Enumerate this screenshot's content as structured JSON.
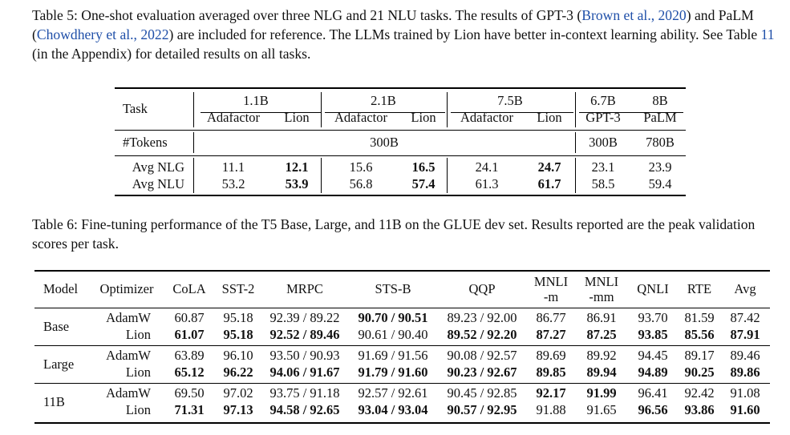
{
  "table5": {
    "caption": {
      "prefix": "Table 5: One-shot evaluation averaged over three NLG and 21 NLU tasks. The results of GPT-3 (",
      "cite1": "Brown et al., 2020",
      "mid1": ") and PaLM (",
      "cite2": "Chowdhery et al., 2022",
      "mid2": ") are included for reference. The LLMs trained by Lion have better in-context learning ability. See Table ",
      "ref": "11",
      "suffix": " (in the Appendix) for detailed results on all tasks."
    },
    "header": {
      "task": "Task",
      "groups": [
        "1.1B",
        "2.1B",
        "7.5B",
        "6.7B",
        "8B"
      ],
      "sub": [
        "Adafactor",
        "Lion",
        "Adafactor",
        "Lion",
        "Adafactor",
        "Lion",
        "GPT-3",
        "PaLM"
      ]
    },
    "tokens_row": {
      "label": "#Tokens",
      "ours": "300B",
      "gpt3": "300B",
      "palm": "780B"
    },
    "rows": [
      {
        "label": "Avg NLG",
        "vals": [
          "11.1",
          "12.1",
          "15.6",
          "16.5",
          "24.1",
          "24.7",
          "23.1",
          "23.9"
        ]
      },
      {
        "label": "Avg NLU",
        "vals": [
          "53.2",
          "53.9",
          "56.8",
          "57.4",
          "61.3",
          "61.7",
          "58.5",
          "59.4"
        ]
      }
    ]
  },
  "table6": {
    "caption": "Table 6: Fine-tuning performance of the T5 Base, Large, and 11B on the GLUE dev set. Results reported are the peak validation scores per task.",
    "header": {
      "model": "Model",
      "optimizer": "Optimizer",
      "cols": [
        "CoLA",
        "SST-2",
        "MRPC",
        "STS-B",
        "QQP",
        "MNLI",
        "MNLI",
        "QNLI",
        "RTE",
        "Avg"
      ],
      "mnli_m": "-m",
      "mnli_mm": "-mm"
    },
    "groups": [
      {
        "model": "Base",
        "rows": [
          {
            "opt": "AdamW",
            "vals": [
              "60.87",
              "95.18",
              "92.39 / 89.22",
              "90.70 / 90.51",
              "89.23 / 92.00",
              "86.77",
              "86.91",
              "93.70",
              "81.59",
              "87.42"
            ]
          },
          {
            "opt": "Lion",
            "vals": [
              "61.07",
              "95.18",
              "92.52 / 89.46",
              "90.61 / 90.40",
              "89.52 / 92.20",
              "87.27",
              "87.25",
              "93.85",
              "85.56",
              "87.91"
            ]
          }
        ]
      },
      {
        "model": "Large",
        "rows": [
          {
            "opt": "AdamW",
            "vals": [
              "63.89",
              "96.10",
              "93.50 / 90.93",
              "91.69 / 91.56",
              "90.08 / 92.57",
              "89.69",
              "89.92",
              "94.45",
              "89.17",
              "89.46"
            ]
          },
          {
            "opt": "Lion",
            "vals": [
              "65.12",
              "96.22",
              "94.06 / 91.67",
              "91.79 / 91.60",
              "90.23 / 92.67",
              "89.85",
              "89.94",
              "94.89",
              "90.25",
              "89.86"
            ]
          }
        ]
      },
      {
        "model": "11B",
        "rows": [
          {
            "opt": "AdamW",
            "vals": [
              "69.50",
              "97.02",
              "93.75 / 91.18",
              "92.57 / 92.61",
              "90.45 / 92.85",
              "92.17",
              "91.99",
              "96.41",
              "92.42",
              "91.08"
            ]
          },
          {
            "opt": "Lion",
            "vals": [
              "71.31",
              "97.13",
              "94.58 / 92.65",
              "93.04 / 93.04",
              "90.57 / 92.95",
              "91.88",
              "91.65",
              "96.56",
              "93.86",
              "91.60"
            ]
          }
        ]
      }
    ]
  },
  "colors": {
    "citation": "#1f4fa8"
  }
}
